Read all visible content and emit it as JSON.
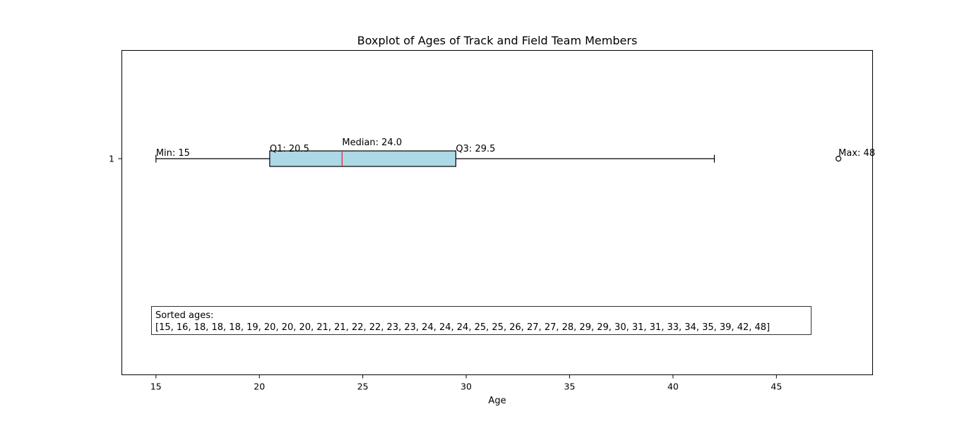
{
  "chart_data": {
    "type": "boxplot",
    "orientation": "horizontal",
    "title": "Boxplot of Ages of Track and Field Team Members",
    "xlabel": "Age",
    "ylabel": "",
    "xlim": [
      13.35,
      49.65
    ],
    "xticks": [
      15,
      20,
      25,
      30,
      35,
      40,
      45
    ],
    "yticks": [
      "1"
    ],
    "grid": false,
    "stats": {
      "whisker_low": 15,
      "q1": 20.5,
      "median": 24.0,
      "q3": 29.5,
      "whisker_high": 42,
      "outliers": [
        48
      ]
    },
    "annotations": {
      "min": "Min: 15",
      "q1": "Q1: 20.5",
      "median": "Median: 24.0",
      "q3": "Q3: 29.5",
      "max": "Max: 48"
    },
    "box_color": "#add8e6",
    "median_color": "#d62728",
    "sorted_ages_label": "Sorted ages:",
    "sorted_ages_text": "[15, 16, 18, 18, 18, 19, 20, 20, 20, 21, 21, 22, 22, 23, 23, 24, 24, 24, 25, 25, 26, 27, 27, 28, 29, 29, 30, 31, 31, 33, 34, 35, 39, 42, 48]"
  }
}
